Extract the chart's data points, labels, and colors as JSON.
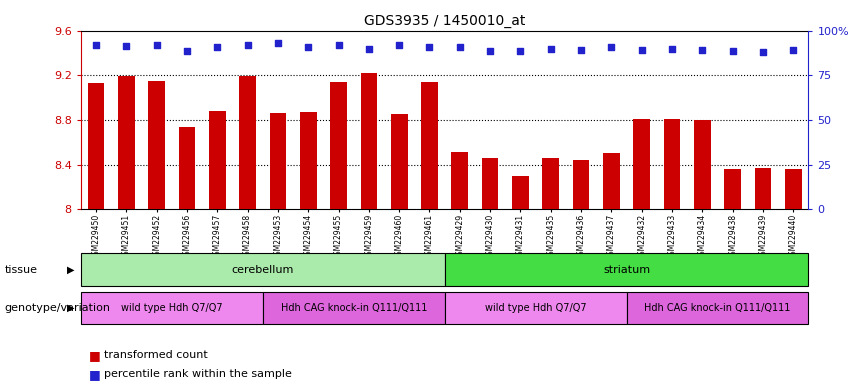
{
  "title": "GDS3935 / 1450010_at",
  "samples": [
    "GSM229450",
    "GSM229451",
    "GSM229452",
    "GSM229456",
    "GSM229457",
    "GSM229458",
    "GSM229453",
    "GSM229454",
    "GSM229455",
    "GSM229459",
    "GSM229460",
    "GSM229461",
    "GSM229429",
    "GSM229430",
    "GSM229431",
    "GSM229435",
    "GSM229436",
    "GSM229437",
    "GSM229432",
    "GSM229433",
    "GSM229434",
    "GSM229438",
    "GSM229439",
    "GSM229440"
  ],
  "bar_values": [
    9.13,
    9.19,
    9.15,
    8.74,
    8.88,
    9.19,
    8.86,
    8.87,
    9.14,
    9.22,
    8.85,
    9.14,
    8.51,
    8.46,
    8.3,
    8.46,
    8.44,
    8.5,
    8.81,
    8.81,
    8.8,
    8.36,
    8.37,
    8.36
  ],
  "percentile_values_left_scale": [
    9.47,
    9.46,
    9.47,
    9.42,
    9.45,
    9.47,
    9.49,
    9.45,
    9.47,
    9.44,
    9.47,
    9.45,
    9.45,
    9.42,
    9.42,
    9.44,
    9.43,
    9.45,
    9.43,
    9.44,
    9.43,
    9.42,
    9.41,
    9.43
  ],
  "bar_color": "#cc0000",
  "percentile_color": "#2222cc",
  "ylim_left": [
    8.0,
    9.6
  ],
  "ylim_right": [
    0,
    100
  ],
  "yticks_left": [
    8.0,
    8.4,
    8.8,
    9.2,
    9.6
  ],
  "ytick_labels_left": [
    "8",
    "8.4",
    "8.8",
    "9.2",
    "9.6"
  ],
  "yticks_right": [
    0,
    25,
    50,
    75,
    100
  ],
  "ytick_labels_right": [
    "0",
    "25",
    "50",
    "75",
    "100%"
  ],
  "hlines": [
    8.4,
    8.8,
    9.2
  ],
  "tissue_groups": [
    {
      "label": "cerebellum",
      "start": 0,
      "end": 11,
      "color": "#aaeaaa"
    },
    {
      "label": "striatum",
      "start": 12,
      "end": 23,
      "color": "#44dd44"
    }
  ],
  "genotype_groups": [
    {
      "label": "wild type Hdh Q7/Q7",
      "start": 0,
      "end": 5,
      "color": "#ee88ee"
    },
    {
      "label": "Hdh CAG knock-in Q111/Q111",
      "start": 6,
      "end": 11,
      "color": "#dd66dd"
    },
    {
      "label": "wild type Hdh Q7/Q7",
      "start": 12,
      "end": 17,
      "color": "#ee88ee"
    },
    {
      "label": "Hdh CAG knock-in Q111/Q111",
      "start": 18,
      "end": 23,
      "color": "#dd66dd"
    }
  ],
  "tissue_label": "tissue",
  "genotype_label": "genotype/variation",
  "legend_bar_label": "transformed count",
  "legend_pct_label": "percentile rank within the sample",
  "background_color": "#ffffff"
}
